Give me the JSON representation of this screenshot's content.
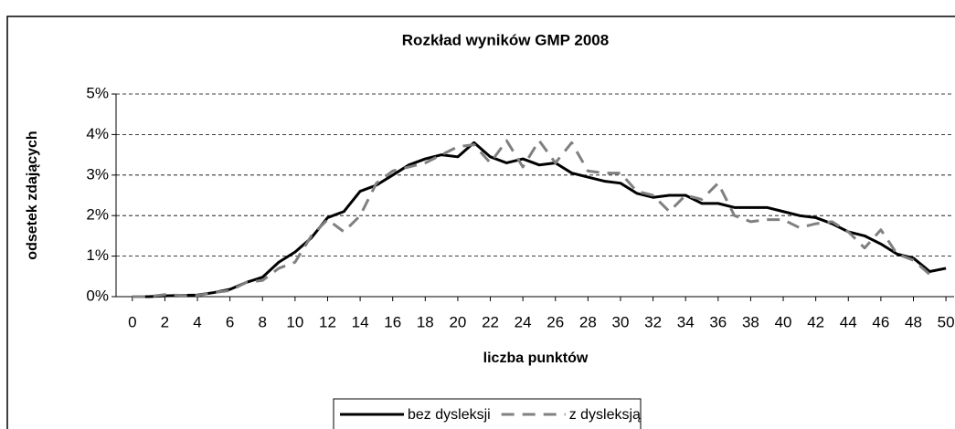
{
  "chart_data": {
    "type": "line",
    "title": "Rozkład wyników GMP 2008",
    "x_label": "liczba punktów",
    "y_label": "odsetek zdających",
    "x": [
      0,
      1,
      2,
      3,
      4,
      5,
      6,
      7,
      8,
      9,
      10,
      11,
      12,
      13,
      14,
      15,
      16,
      17,
      18,
      19,
      20,
      21,
      22,
      23,
      24,
      25,
      26,
      27,
      28,
      29,
      30,
      31,
      32,
      33,
      34,
      35,
      36,
      37,
      38,
      39,
      40,
      41,
      42,
      43,
      44,
      45,
      46,
      47,
      48,
      49,
      50
    ],
    "series": [
      {
        "name": "bez dysleksji",
        "color": "#000000",
        "dash": false,
        "values": [
          0,
          0,
          0.02,
          0.03,
          0.04,
          0.1,
          0.18,
          0.35,
          0.48,
          0.85,
          1.1,
          1.45,
          1.95,
          2.1,
          2.6,
          2.75,
          3.0,
          3.25,
          3.4,
          3.5,
          3.45,
          3.8,
          3.45,
          3.3,
          3.4,
          3.25,
          3.3,
          3.05,
          2.95,
          2.85,
          2.8,
          2.55,
          2.45,
          2.5,
          2.5,
          2.3,
          2.3,
          2.2,
          2.2,
          2.2,
          2.1,
          2.0,
          1.95,
          1.8,
          1.6,
          1.5,
          1.3,
          1.05,
          0.95,
          0.62,
          0.7
        ]
      },
      {
        "name": "z dysleksją",
        "color": "#808080",
        "dash": true,
        "values": [
          0,
          0,
          0.05,
          0.03,
          0.03,
          0.1,
          0.15,
          0.35,
          0.4,
          0.7,
          0.85,
          1.5,
          1.9,
          1.6,
          2.0,
          2.8,
          3.1,
          3.2,
          3.3,
          3.5,
          3.7,
          3.75,
          3.3,
          3.85,
          3.2,
          3.85,
          3.3,
          3.8,
          3.1,
          3.05,
          3.05,
          2.6,
          2.5,
          2.1,
          2.5,
          2.4,
          2.8,
          2.0,
          1.85,
          1.9,
          1.9,
          1.7,
          1.8,
          1.85,
          1.6,
          1.2,
          1.65,
          1.05,
          0.9,
          0.55,
          null
        ]
      }
    ],
    "xlim": [
      -1,
      50.5
    ],
    "xticks": [
      0,
      2,
      4,
      6,
      8,
      10,
      12,
      14,
      16,
      18,
      20,
      22,
      24,
      26,
      28,
      30,
      32,
      34,
      36,
      38,
      40,
      42,
      44,
      46,
      48,
      50
    ],
    "ylim": [
      0,
      5
    ],
    "yticks": [
      {
        "value": 0,
        "label": "0%"
      },
      {
        "value": 1,
        "label": "1%"
      },
      {
        "value": 2,
        "label": "2%"
      },
      {
        "value": 3,
        "label": "3%"
      },
      {
        "value": 4,
        "label": "4%"
      },
      {
        "value": 5,
        "label": "5%"
      }
    ],
    "grid": true,
    "legend": "bottom"
  }
}
